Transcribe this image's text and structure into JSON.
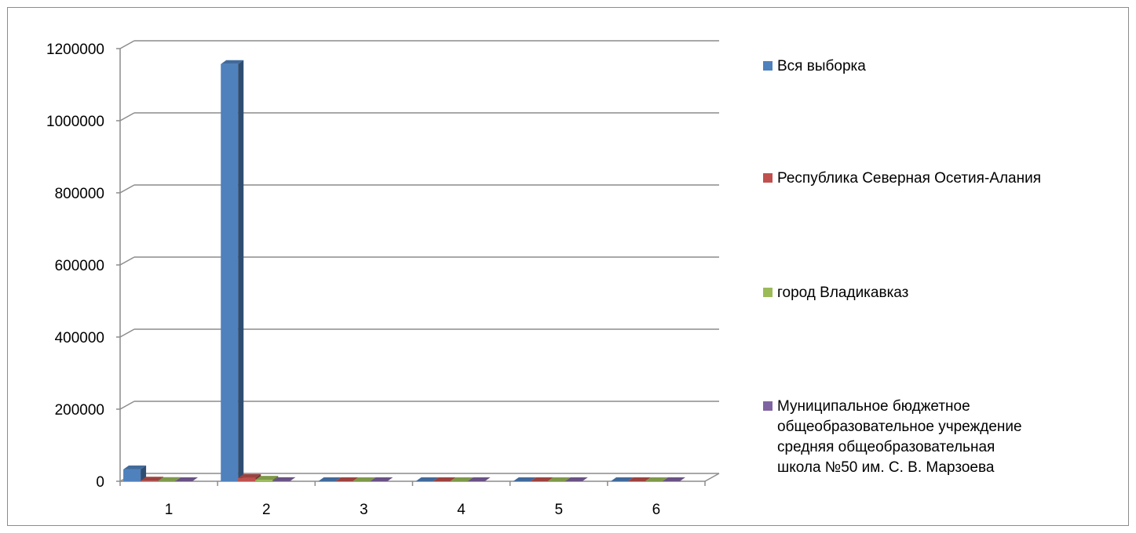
{
  "chart_data": {
    "type": "bar",
    "subtype": "3d-clustered-column",
    "title": "",
    "xlabel": "",
    "ylabel": "",
    "ylim": [
      0,
      1200000
    ],
    "yticks": [
      0,
      200000,
      400000,
      600000,
      800000,
      1000000,
      1200000
    ],
    "ytick_labels": [
      "0",
      "200000",
      "400000",
      "600000",
      "800000",
      "1000000",
      "1200000"
    ],
    "categories": [
      "1",
      "2",
      "3",
      "4",
      "5",
      "6"
    ],
    "grid": true,
    "legend_position": "right",
    "series": [
      {
        "name": "Вся выборка",
        "color": "#4f81bd",
        "values": [
          33000,
          1157000,
          0,
          0,
          0,
          0
        ]
      },
      {
        "name": "Республика Северная Осетия-Алания",
        "color": "#c0504d",
        "values": [
          1500,
          9000,
          0,
          0,
          0,
          0
        ]
      },
      {
        "name": "город Владикавказ",
        "color": "#9bbb59",
        "values": [
          500,
          4000,
          0,
          0,
          0,
          0
        ]
      },
      {
        "name": "Муниципальное бюджетное общеобразовательное учреждение средняя общеобразовательная школа №50 им. С. В. Марзоева",
        "color": "#8064a2",
        "values": [
          50,
          150,
          0,
          0,
          0,
          0
        ]
      }
    ]
  }
}
